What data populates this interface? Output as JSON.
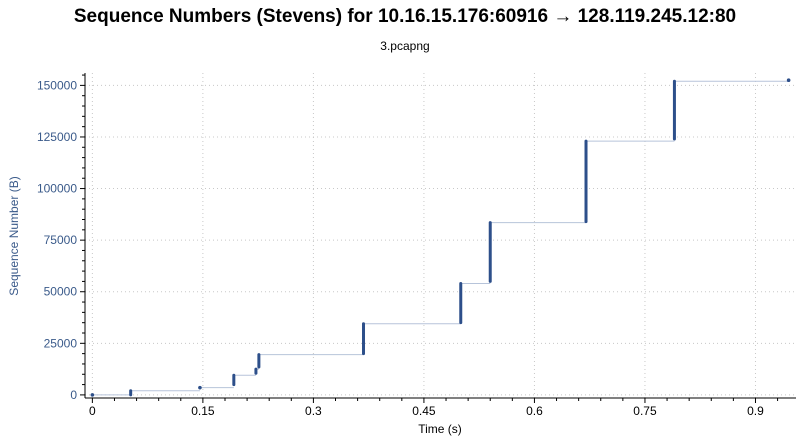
{
  "header": {
    "title": "Sequence Numbers (Stevens) for 10.16.15.176:60916 → 128.119.245.12:80",
    "subtitle": "3.pcapng"
  },
  "chart_data": {
    "type": "scatter",
    "title": "Sequence Numbers (Stevens) for 10.16.15.176:60916 → 128.119.245.12:80",
    "subtitle": "3.pcapng",
    "xlabel": "Time (s)",
    "ylabel": "Sequence Number (B)",
    "xlim": [
      -0.01,
      0.955
    ],
    "ylim": [
      -1500,
      156000
    ],
    "xticks": [
      0,
      0.15,
      0.3,
      0.45,
      0.6,
      0.75,
      0.9
    ],
    "xtick_labels": [
      "0",
      "0.15",
      "0.3",
      "0.45",
      "0.6",
      "0.75",
      "0.9"
    ],
    "yticks": [
      0,
      25000,
      50000,
      75000,
      100000,
      125000,
      150000
    ],
    "ytick_labels": [
      "0",
      "25000",
      "50000",
      "75000",
      "100000",
      "125000",
      "150000"
    ],
    "grid": true,
    "colors": {
      "points": "#2d4f8a",
      "steps": "#b7c4da",
      "grid": "#c8c8c8",
      "axis_label": "#3a5a8a"
    },
    "bursts": [
      {
        "t": 0.0,
        "seq_start": 0,
        "seq_end": 0
      },
      {
        "t": 0.052,
        "seq_start": 0,
        "seq_end": 2000
      },
      {
        "t": 0.146,
        "seq_start": 3500,
        "seq_end": 3500
      },
      {
        "t": 0.192,
        "seq_start": 5000,
        "seq_end": 9500
      },
      {
        "t": 0.222,
        "seq_start": 10500,
        "seq_end": 12500
      },
      {
        "t": 0.226,
        "seq_start": 13500,
        "seq_end": 19500
      },
      {
        "t": 0.368,
        "seq_start": 20000,
        "seq_end": 34500
      },
      {
        "t": 0.5,
        "seq_start": 35000,
        "seq_end": 54000
      },
      {
        "t": 0.54,
        "seq_start": 55000,
        "seq_end": 83500
      },
      {
        "t": 0.67,
        "seq_start": 84000,
        "seq_end": 123000
      },
      {
        "t": 0.79,
        "seq_start": 124000,
        "seq_end": 152000
      },
      {
        "t": 0.945,
        "seq_start": 152500,
        "seq_end": 152500
      }
    ]
  }
}
